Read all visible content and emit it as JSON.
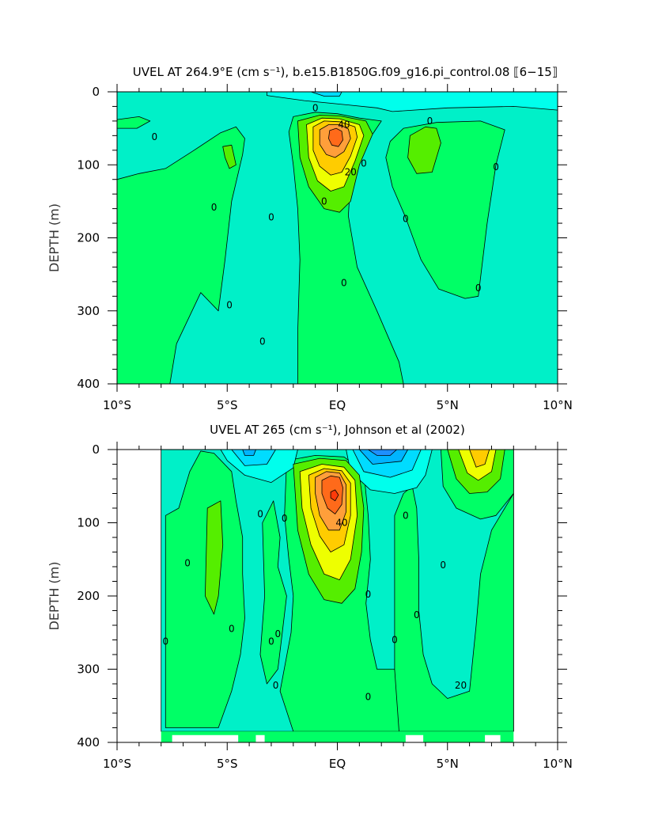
{
  "chart_data": [
    {
      "type": "contour",
      "title": "UVEL AT 264.9°E (cm s⁻¹), b.e15.B1850G.f09_g16.pi_control.08 ⟦6−15⟧",
      "ylabel": "DEPTH (m)",
      "xlabel": "",
      "xlim": [
        -10,
        10
      ],
      "ylim": [
        400,
        0
      ],
      "x_ticks": [
        -10,
        -5,
        0,
        5,
        10
      ],
      "x_tick_labels": [
        "10°S",
        "5°S",
        "EQ",
        "5°N",
        "10°N"
      ],
      "y_ticks": [
        0,
        100,
        200,
        300,
        400
      ],
      "y_tick_labels": [
        "0",
        "100",
        "200",
        "300",
        "400"
      ],
      "contour_interval": 10,
      "contour_labels": [
        "0",
        "0",
        "0",
        "0",
        "0",
        "0",
        "0",
        "0",
        "0",
        "0",
        "0",
        "0",
        "0",
        "20",
        "40"
      ],
      "features": [
        {
          "name": "Equatorial Undercurrent core",
          "lon": -0.1,
          "depth": 65,
          "max_value": 60
        },
        {
          "name": "near-surface westward flow",
          "lon_range": [
            -3,
            2
          ],
          "depth_range": [
            0,
            30
          ],
          "min_value": -20
        }
      ],
      "grid": false
    },
    {
      "type": "contour",
      "title": "UVEL AT 265 (cm s⁻¹), Johnson et al (2002)",
      "ylabel": "DEPTH (m)",
      "xlabel": "",
      "xlim": [
        -10,
        10
      ],
      "ylim": [
        400,
        0
      ],
      "data_lon_range": [
        -8,
        8
      ],
      "x_ticks": [
        -10,
        -5,
        0,
        5,
        10
      ],
      "x_tick_labels": [
        "10°S",
        "5°S",
        "EQ",
        "5°N",
        "10°N"
      ],
      "y_ticks": [
        0,
        100,
        200,
        300,
        400
      ],
      "y_tick_labels": [
        "0",
        "100",
        "200",
        "300",
        "400"
      ],
      "contour_interval": 10,
      "contour_labels": [
        "0",
        "0",
        "0",
        "0",
        "0",
        "0",
        "0",
        "0",
        "0",
        "0",
        "0",
        "0",
        "0",
        "0",
        "20",
        "40"
      ],
      "features": [
        {
          "name": "Equatorial Undercurrent core",
          "lon": -0.1,
          "depth": 65,
          "max_value": 70
        },
        {
          "name": "North Equatorial Countercurrent",
          "lon": 6.5,
          "depth": 20,
          "max_value": 30
        },
        {
          "name": "South Equatorial Current (north branch)",
          "lon": 2.5,
          "depth": 25,
          "min_value": -40
        },
        {
          "name": "South Equatorial Current (south branch)",
          "lon": -4.8,
          "depth": 10,
          "min_value": -30
        }
      ],
      "grid": false
    }
  ],
  "colors": {
    "neg40": "#1e90ff",
    "neg30": "#00b4ff",
    "neg20": "#00dcff",
    "neg10": "#00ffec",
    "pos0": "#00f0c8",
    "pos10": "#00ff66",
    "pos20": "#55ee00",
    "pos30": "#eeff00",
    "pos40": "#ffcc00",
    "pos50": "#ff9f3a",
    "pos60": "#ff6a1a",
    "pos70": "#ff3a0a"
  }
}
